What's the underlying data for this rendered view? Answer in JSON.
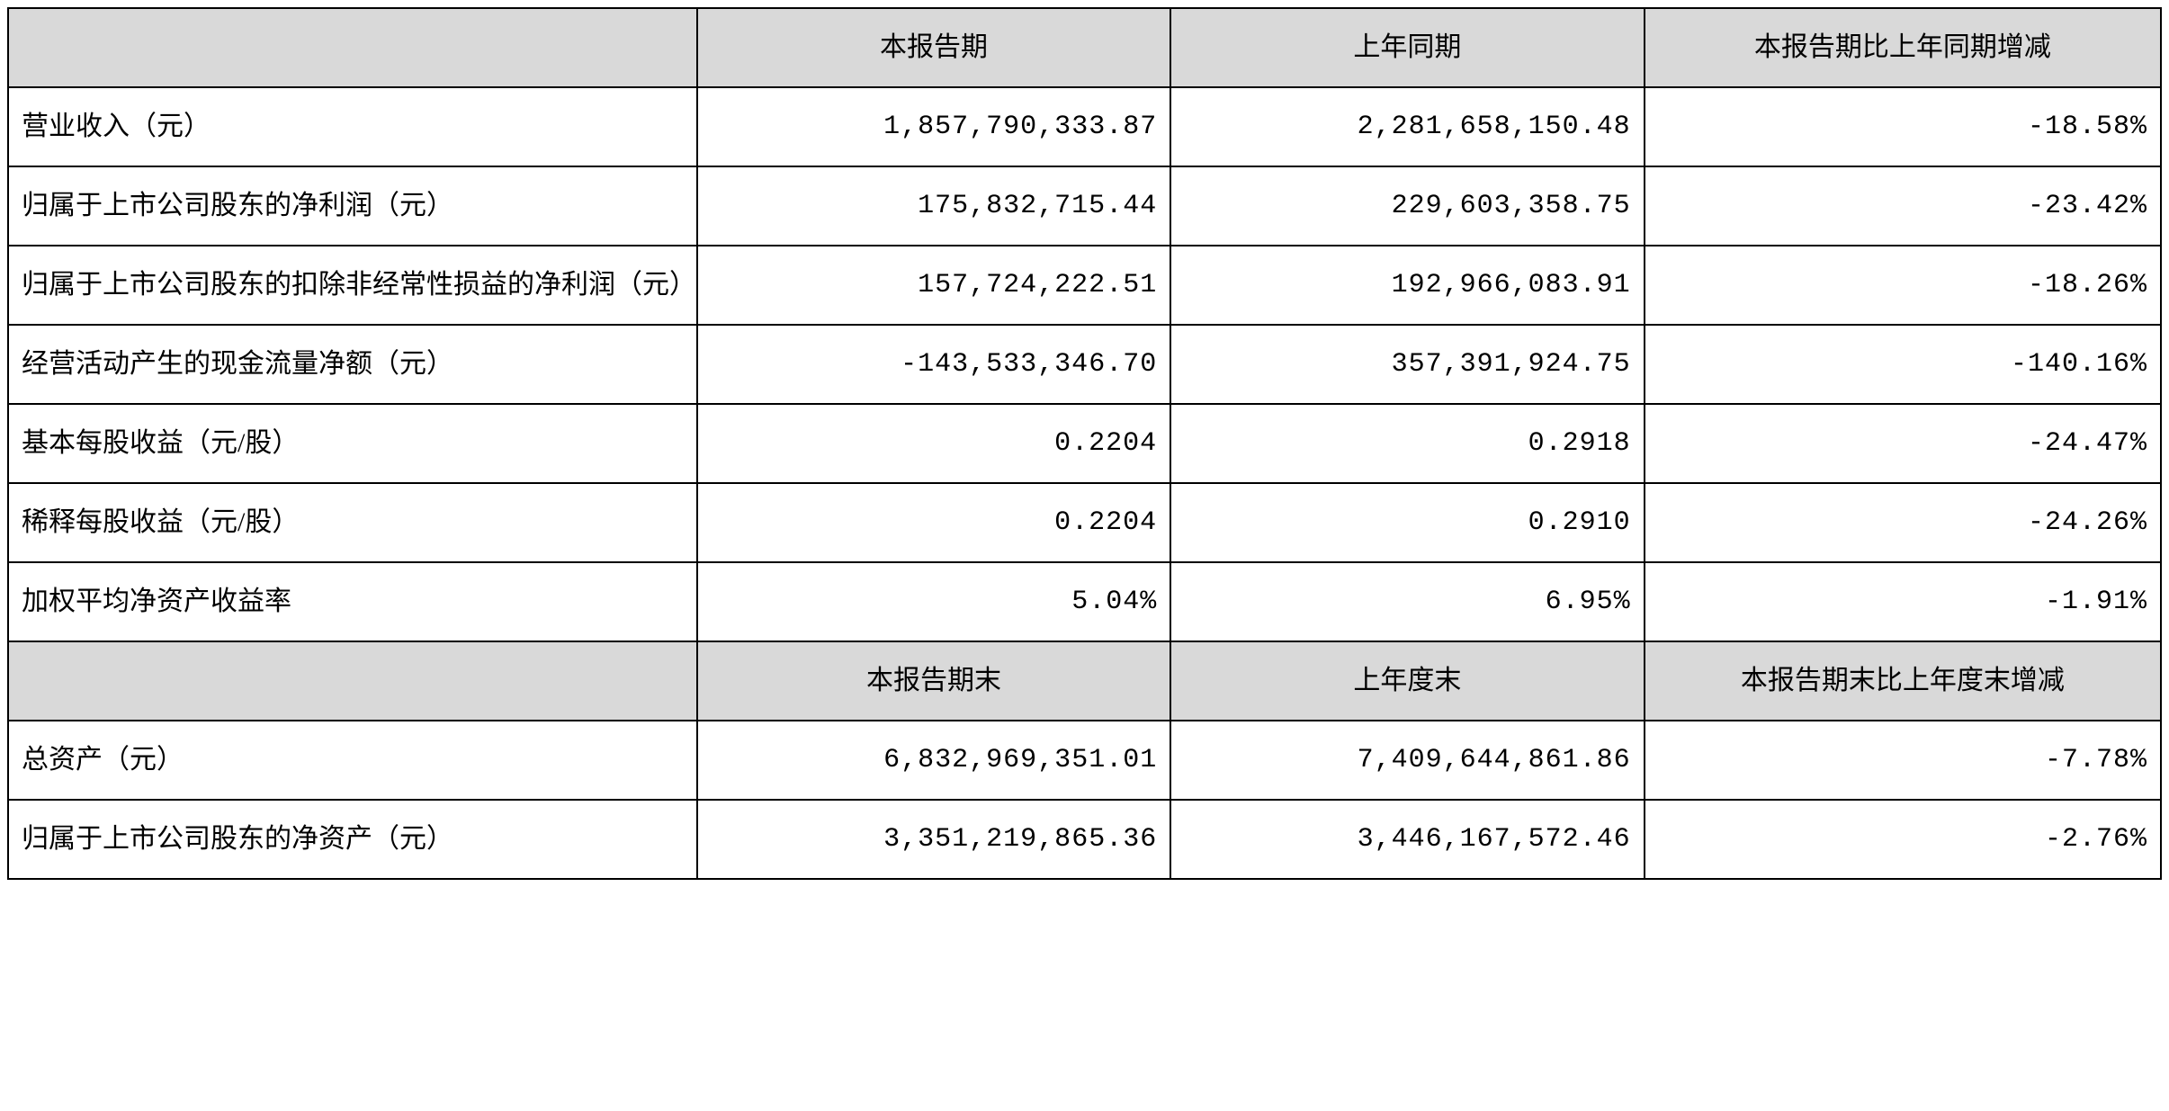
{
  "table": {
    "background_color": "#ffffff",
    "header_bg": "#d9d9d9",
    "border_color": "#000000",
    "font_size_pt": 30,
    "header1": {
      "blank": "",
      "col1": "本报告期",
      "col2": "上年同期",
      "col3": "本报告期比上年同期增减"
    },
    "rows1": [
      {
        "label": "营业收入（元）",
        "v1": "1,857,790,333.87",
        "v2": "2,281,658,150.48",
        "v3": "-18.58%"
      },
      {
        "label": "归属于上市公司股东的净利润（元）",
        "v1": "175,832,715.44",
        "v2": "229,603,358.75",
        "v3": "-23.42%"
      },
      {
        "label": "归属于上市公司股东的扣除非经常性损益的净利润（元）",
        "v1": "157,724,222.51",
        "v2": "192,966,083.91",
        "v3": "-18.26%"
      },
      {
        "label": "经营活动产生的现金流量净额（元）",
        "v1": "-143,533,346.70",
        "v2": "357,391,924.75",
        "v3": "-140.16%"
      },
      {
        "label": "基本每股收益（元/股）",
        "v1": "0.2204",
        "v2": "0.2918",
        "v3": "-24.47%"
      },
      {
        "label": "稀释每股收益（元/股）",
        "v1": "0.2204",
        "v2": "0.2910",
        "v3": "-24.26%"
      },
      {
        "label": "加权平均净资产收益率",
        "v1": "5.04%",
        "v2": "6.95%",
        "v3": "-1.91%"
      }
    ],
    "header2": {
      "blank": "",
      "col1": "本报告期末",
      "col2": "上年度末",
      "col3": "本报告期末比上年度末增减"
    },
    "rows2": [
      {
        "label": "总资产（元）",
        "v1": "6,832,969,351.01",
        "v2": "7,409,644,861.86",
        "v3": "-7.78%"
      },
      {
        "label": "归属于上市公司股东的净资产（元）",
        "v1": "3,351,219,865.36",
        "v2": "3,446,167,572.46",
        "v3": "-2.76%"
      }
    ]
  }
}
